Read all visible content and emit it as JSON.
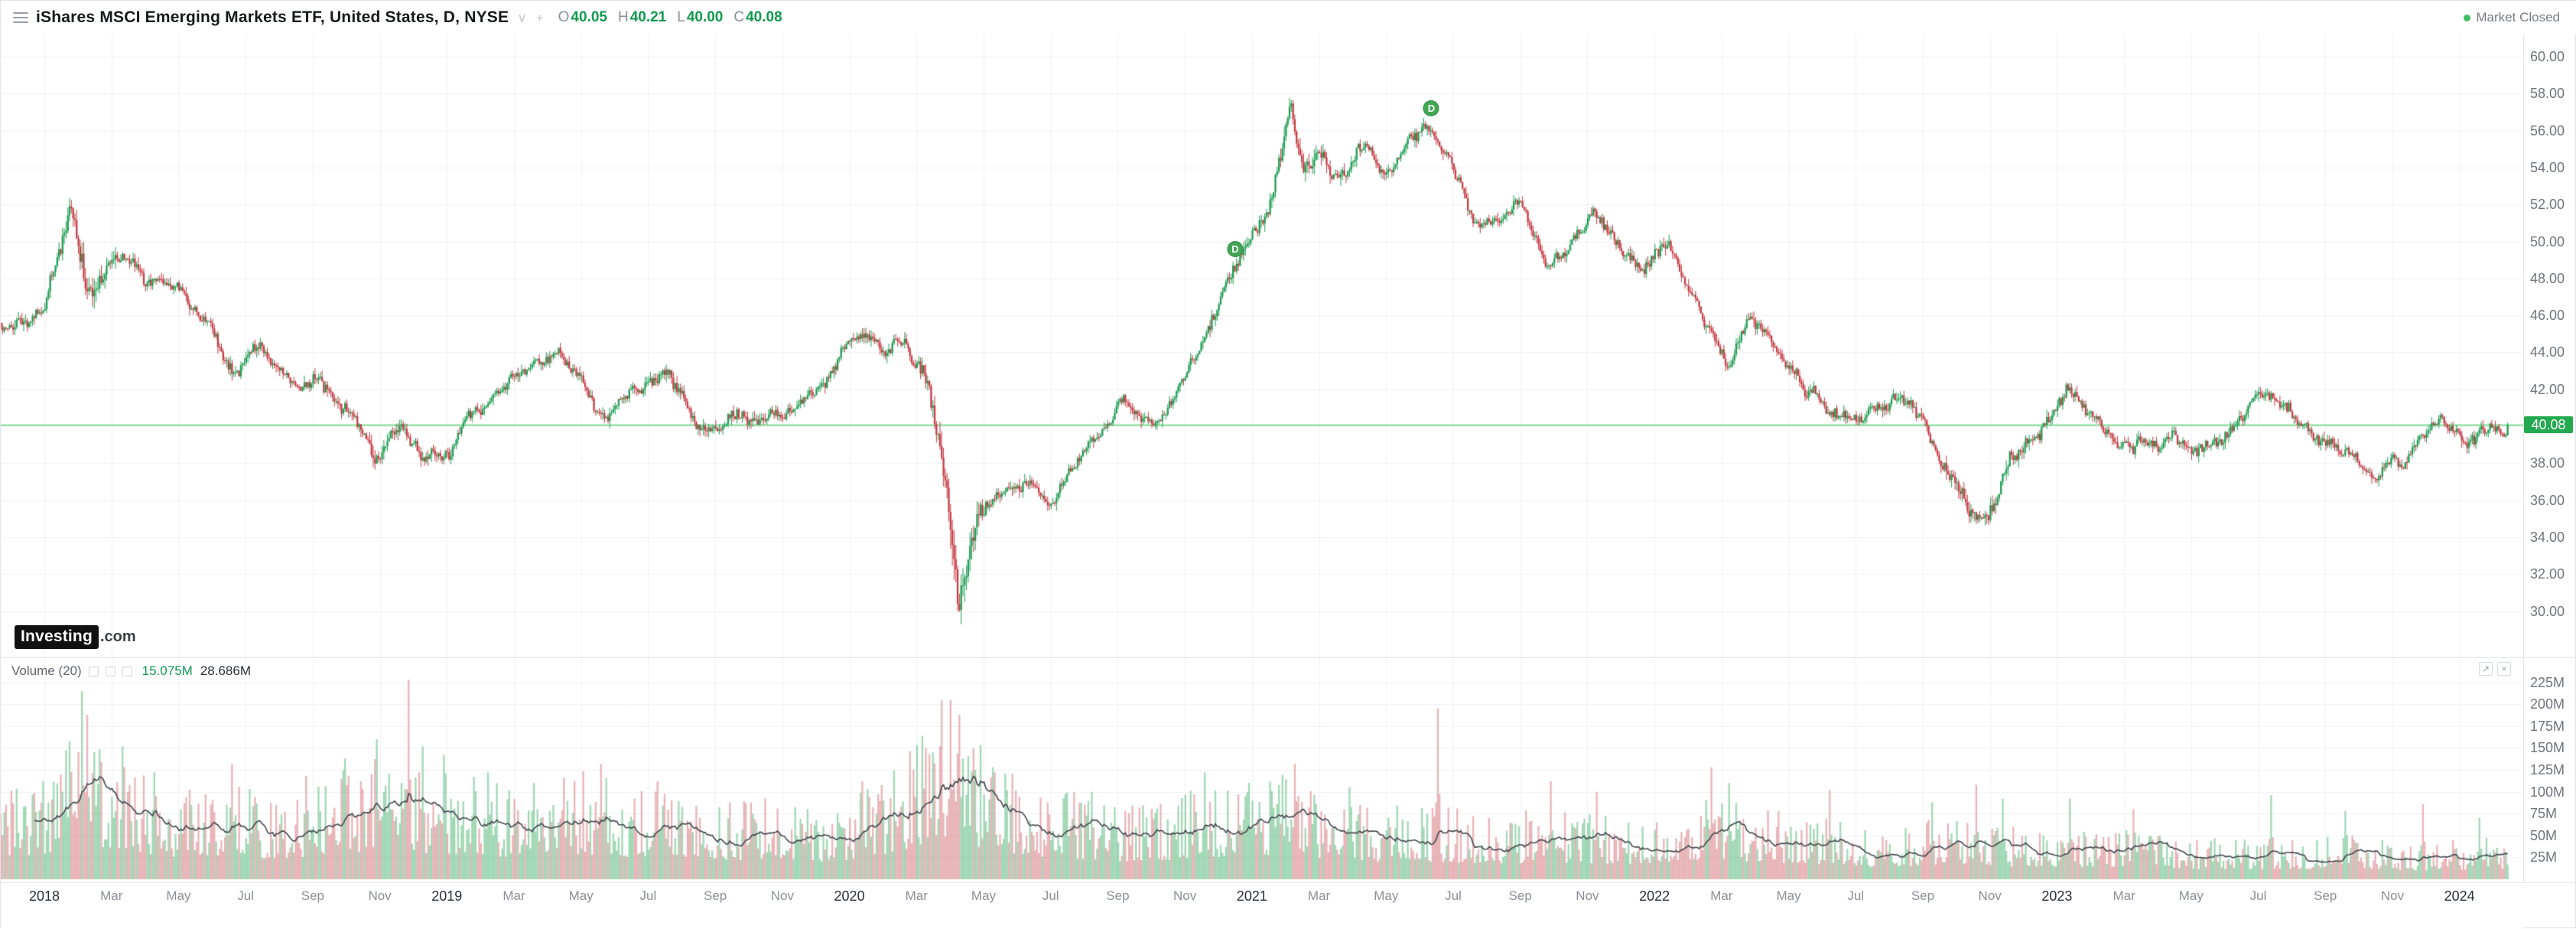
{
  "header": {
    "title": "iShares MSCI Emerging Markets ETF, United States, D, NYSE",
    "ohlc": [
      {
        "label": "O",
        "value": "40.05"
      },
      {
        "label": "H",
        "value": "40.21"
      },
      {
        "label": "L",
        "value": "40.00"
      },
      {
        "label": "C",
        "value": "40.08"
      }
    ],
    "market_status": "Market Closed"
  },
  "logo": {
    "name": "Investing",
    "tld": ".com"
  },
  "volume_pane": {
    "label": "Volume (20)",
    "ma_value": "15.075M",
    "current_value": "28.686M"
  },
  "chart_data": {
    "type": "candlestick",
    "symbol": "iShares MSCI Emerging Markets ETF",
    "region": "United States",
    "exchange": "NYSE",
    "interval": "D",
    "ohlc_display": {
      "open": 40.05,
      "high": 40.21,
      "low": 40.0,
      "close": 40.08
    },
    "last_price": 40.08,
    "last_price_label": "40.08",
    "ylim": [
      27.5,
      61.2
    ],
    "volume_ylim_m": [
      0,
      237
    ],
    "price_axis_ticks": [
      "60.00",
      "58.00",
      "56.00",
      "54.00",
      "52.00",
      "50.00",
      "48.00",
      "46.00",
      "44.00",
      "42.00",
      "40.00",
      "38.00",
      "36.00",
      "34.00",
      "32.00",
      "30.00"
    ],
    "volume_axis_ticks": [
      "225M",
      "200M",
      "175M",
      "150M",
      "125M",
      "100M",
      "75M",
      "50M",
      "25M"
    ],
    "time_axis": [
      {
        "m": 0,
        "label": "2018",
        "year": true
      },
      {
        "m": 2,
        "label": "Mar"
      },
      {
        "m": 4,
        "label": "May"
      },
      {
        "m": 6,
        "label": "Jul"
      },
      {
        "m": 8,
        "label": "Sep"
      },
      {
        "m": 10,
        "label": "Nov"
      },
      {
        "m": 12,
        "label": "2019",
        "year": true
      },
      {
        "m": 14,
        "label": "Mar"
      },
      {
        "m": 16,
        "label": "May"
      },
      {
        "m": 18,
        "label": "Jul"
      },
      {
        "m": 20,
        "label": "Sep"
      },
      {
        "m": 22,
        "label": "Nov"
      },
      {
        "m": 24,
        "label": "2020",
        "year": true
      },
      {
        "m": 26,
        "label": "Mar"
      },
      {
        "m": 28,
        "label": "May"
      },
      {
        "m": 30,
        "label": "Jul"
      },
      {
        "m": 32,
        "label": "Sep"
      },
      {
        "m": 34,
        "label": "Nov"
      },
      {
        "m": 36,
        "label": "2021",
        "year": true
      },
      {
        "m": 38,
        "label": "Mar"
      },
      {
        "m": 40,
        "label": "May"
      },
      {
        "m": 42,
        "label": "Jul"
      },
      {
        "m": 44,
        "label": "Sep"
      },
      {
        "m": 46,
        "label": "Nov"
      },
      {
        "m": 48,
        "label": "2022",
        "year": true
      },
      {
        "m": 50,
        "label": "Mar"
      },
      {
        "m": 52,
        "label": "May"
      },
      {
        "m": 54,
        "label": "Jul"
      },
      {
        "m": 56,
        "label": "Sep"
      },
      {
        "m": 58,
        "label": "Nov"
      },
      {
        "m": 60,
        "label": "2023",
        "year": true
      },
      {
        "m": 62,
        "label": "Mar"
      },
      {
        "m": 64,
        "label": "May"
      },
      {
        "m": 66,
        "label": "Jul"
      },
      {
        "m": 68,
        "label": "Sep"
      },
      {
        "m": 70,
        "label": "Nov"
      },
      {
        "m": 72,
        "label": "2024",
        "year": true
      }
    ],
    "x_start": "2017-12",
    "x_end": "2024-01",
    "price_anchors": [
      [
        -1.3,
        45.6
      ],
      [
        0,
        46.5
      ],
      [
        0.8,
        52.3
      ],
      [
        1.3,
        47.3
      ],
      [
        2.1,
        49.8
      ],
      [
        3.0,
        48.2
      ],
      [
        4.2,
        47.6
      ],
      [
        5.0,
        45.5
      ],
      [
        5.6,
        43.6
      ],
      [
        6.5,
        44.2
      ],
      [
        7.4,
        42.8
      ],
      [
        8.2,
        43.2
      ],
      [
        9.0,
        41.2
      ],
      [
        9.9,
        38.6
      ],
      [
        10.6,
        39.8
      ],
      [
        11.3,
        38.8
      ],
      [
        11.9,
        37.9
      ],
      [
        12.5,
        39.5
      ],
      [
        13.5,
        41.5
      ],
      [
        14.5,
        42.5
      ],
      [
        15.3,
        43.8
      ],
      [
        16.2,
        42.0
      ],
      [
        16.8,
        40.6
      ],
      [
        17.6,
        42.2
      ],
      [
        18.6,
        42.9
      ],
      [
        19.5,
        40.2
      ],
      [
        20.5,
        41.2
      ],
      [
        21.3,
        41.0
      ],
      [
        22.3,
        41.8
      ],
      [
        23.3,
        43.5
      ],
      [
        24.2,
        45.1
      ],
      [
        25.0,
        43.8
      ],
      [
        25.7,
        44.6
      ],
      [
        26.3,
        42.5
      ],
      [
        26.9,
        35.5
      ],
      [
        27.25,
        30.6
      ],
      [
        27.8,
        34.8
      ],
      [
        28.5,
        36.2
      ],
      [
        29.3,
        36.8
      ],
      [
        30.0,
        36.6
      ],
      [
        30.7,
        38.8
      ],
      [
        31.5,
        40.3
      ],
      [
        32.3,
        41.2
      ],
      [
        33.0,
        40.3
      ],
      [
        33.6,
        42.0
      ],
      [
        34.5,
        44.8
      ],
      [
        35.2,
        48.2
      ],
      [
        35.9,
        50.3
      ],
      [
        36.6,
        53.0
      ],
      [
        37.15,
        57.9
      ],
      [
        37.5,
        54.5
      ],
      [
        38.1,
        55.6
      ],
      [
        38.6,
        53.3
      ],
      [
        39.3,
        54.8
      ],
      [
        40.0,
        53.6
      ],
      [
        40.6,
        55.0
      ],
      [
        41.3,
        55.8
      ],
      [
        41.9,
        54.9
      ],
      [
        42.6,
        51.9
      ],
      [
        43.3,
        52.6
      ],
      [
        44.0,
        52.9
      ],
      [
        44.8,
        49.8
      ],
      [
        45.5,
        51.0
      ],
      [
        46.2,
        51.8
      ],
      [
        46.9,
        49.9
      ],
      [
        47.6,
        48.7
      ],
      [
        48.3,
        49.6
      ],
      [
        49.0,
        47.3
      ],
      [
        49.8,
        44.3
      ],
      [
        50.2,
        42.3
      ],
      [
        50.8,
        45.4
      ],
      [
        51.5,
        44.9
      ],
      [
        52.3,
        42.4
      ],
      [
        53.2,
        40.2
      ],
      [
        54.0,
        39.8
      ],
      [
        54.6,
        40.2
      ],
      [
        55.4,
        41.2
      ],
      [
        56.2,
        38.8
      ],
      [
        56.9,
        36.8
      ],
      [
        57.5,
        34.3
      ],
      [
        57.9,
        33.9
      ],
      [
        58.6,
        37.6
      ],
      [
        59.4,
        38.7
      ],
      [
        60.3,
        41.6
      ],
      [
        61.0,
        40.0
      ],
      [
        61.8,
        38.2
      ],
      [
        62.6,
        39.2
      ],
      [
        63.5,
        39.6
      ],
      [
        64.3,
        39.0
      ],
      [
        65.3,
        40.4
      ],
      [
        66.2,
        41.5
      ],
      [
        67.0,
        40.6
      ],
      [
        67.9,
        39.4
      ],
      [
        68.7,
        38.2
      ],
      [
        69.4,
        37.0
      ],
      [
        70.1,
        37.8
      ],
      [
        70.9,
        39.2
      ],
      [
        71.6,
        39.9
      ],
      [
        72.4,
        39.7
      ],
      [
        73.0,
        39.9
      ],
      [
        73.5,
        40.08
      ]
    ],
    "volume_anchors_m": [
      [
        -1.3,
        60
      ],
      [
        0,
        62
      ],
      [
        1,
        85
      ],
      [
        2,
        72
      ],
      [
        3,
        62
      ],
      [
        4,
        56
      ],
      [
        5,
        60
      ],
      [
        6,
        55
      ],
      [
        7,
        50
      ],
      [
        8,
        56
      ],
      [
        9,
        66
      ],
      [
        10,
        72
      ],
      [
        11,
        64
      ],
      [
        12,
        66
      ],
      [
        13,
        60
      ],
      [
        14,
        56
      ],
      [
        15,
        58
      ],
      [
        16,
        64
      ],
      [
        17,
        58
      ],
      [
        18,
        54
      ],
      [
        19,
        58
      ],
      [
        20,
        50
      ],
      [
        21,
        48
      ],
      [
        22,
        48
      ],
      [
        23,
        44
      ],
      [
        24,
        50
      ],
      [
        25,
        56
      ],
      [
        26,
        85
      ],
      [
        27,
        112
      ],
      [
        28,
        76
      ],
      [
        29,
        62
      ],
      [
        30,
        54
      ],
      [
        31,
        50
      ],
      [
        32,
        46
      ],
      [
        33,
        46
      ],
      [
        34,
        52
      ],
      [
        35,
        56
      ],
      [
        36,
        58
      ],
      [
        37,
        62
      ],
      [
        38,
        52
      ],
      [
        39,
        46
      ],
      [
        40,
        42
      ],
      [
        41,
        46
      ],
      [
        42,
        42
      ],
      [
        43,
        40
      ],
      [
        44,
        40
      ],
      [
        45,
        42
      ],
      [
        46,
        40
      ],
      [
        47,
        38
      ],
      [
        48,
        42
      ],
      [
        49,
        48
      ],
      [
        50,
        50
      ],
      [
        51,
        42
      ],
      [
        52,
        40
      ],
      [
        53,
        36
      ],
      [
        54,
        32
      ],
      [
        55,
        30
      ],
      [
        56,
        34
      ],
      [
        57,
        40
      ],
      [
        58,
        36
      ],
      [
        59,
        30
      ],
      [
        60,
        32
      ],
      [
        61,
        30
      ],
      [
        62,
        30
      ],
      [
        63,
        27
      ],
      [
        64,
        25
      ],
      [
        65,
        24
      ],
      [
        66,
        26
      ],
      [
        67,
        25
      ],
      [
        68,
        25
      ],
      [
        69,
        27
      ],
      [
        70,
        24
      ],
      [
        71,
        22
      ],
      [
        72,
        24
      ],
      [
        73.5,
        26
      ]
    ],
    "volume_spikes_m": [
      [
        0.75,
        158
      ],
      [
        1.12,
        215
      ],
      [
        1.3,
        188
      ],
      [
        2.35,
        152
      ],
      [
        3.3,
        122
      ],
      [
        5.6,
        132
      ],
      [
        7.8,
        118
      ],
      [
        8.95,
        138
      ],
      [
        9.9,
        160
      ],
      [
        10.85,
        228
      ],
      [
        11.3,
        152
      ],
      [
        11.9,
        142
      ],
      [
        13.2,
        122
      ],
      [
        14.6,
        110
      ],
      [
        16.6,
        132
      ],
      [
        18.3,
        112
      ],
      [
        24.4,
        112
      ],
      [
        26.7,
        152
      ],
      [
        27.0,
        205
      ],
      [
        27.3,
        188
      ],
      [
        27.7,
        150
      ],
      [
        28.3,
        128
      ],
      [
        31.2,
        100
      ],
      [
        34.6,
        122
      ],
      [
        35.9,
        110
      ],
      [
        37.3,
        132
      ],
      [
        38.9,
        105
      ],
      [
        41.55,
        195
      ],
      [
        44.9,
        112
      ],
      [
        46.3,
        100
      ],
      [
        49.7,
        128
      ],
      [
        50.2,
        110
      ],
      [
        53.2,
        102
      ],
      [
        56.3,
        88
      ],
      [
        57.6,
        108
      ],
      [
        58.4,
        92
      ],
      [
        60.4,
        92
      ],
      [
        62.3,
        80
      ],
      [
        66.4,
        96
      ],
      [
        68.6,
        78
      ],
      [
        70.9,
        86
      ],
      [
        72.6,
        70
      ]
    ],
    "dividend_markers": [
      {
        "m": 35.5,
        "label": "D"
      },
      {
        "m": 41.35,
        "label": "D"
      }
    ],
    "colors": {
      "up": "#1f9d52",
      "down": "#c63c44",
      "vol_up": "rgba(49,168,94,0.45)",
      "vol_down": "rgba(198,60,68,0.38)",
      "last_price_line": "#5ad072",
      "last_price_pill": "#23a94f",
      "vol_ma_line": "#43474e",
      "grid": "#f1f2f5",
      "ohlc_value": "#0f9a4e",
      "market_dot": "#3fbf61",
      "ma_value_color": "#0f9a4e",
      "current_value_color": "#2a2e39"
    }
  }
}
